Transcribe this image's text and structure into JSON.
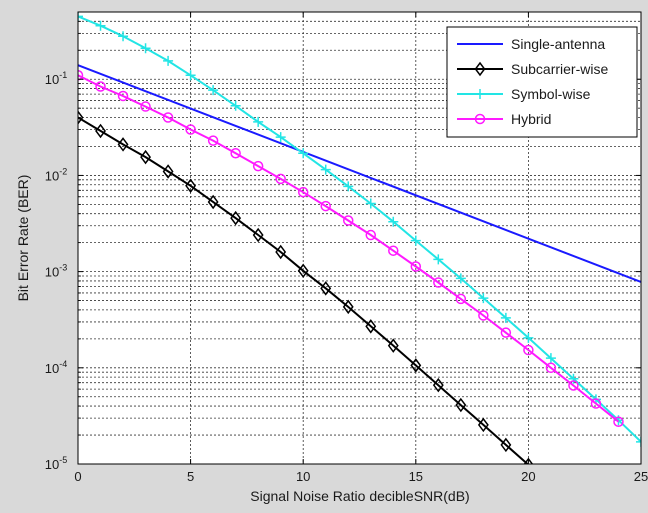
{
  "chart_data": {
    "type": "line",
    "title": "",
    "xlabel": "Signal Noise Ratio  decibleSNR(dB)",
    "ylabel": "Bit Error Rate (BER)",
    "xlim": [
      0,
      25
    ],
    "ylim": [
      1e-05,
      0.5
    ],
    "yscale": "log",
    "grid": true,
    "x_ticks": [
      0,
      5,
      10,
      15,
      20,
      25
    ],
    "x_tick_labels": [
      "0",
      "5",
      "10",
      "15",
      "20",
      "25"
    ],
    "y_ticks": [
      1e-05,
      0.0001,
      0.001,
      0.01,
      0.1
    ],
    "y_tick_labels": [
      {
        "base": "10",
        "exp": "-5"
      },
      {
        "base": "10",
        "exp": "-4"
      },
      {
        "base": "10",
        "exp": "-3"
      },
      {
        "base": "10",
        "exp": "-2"
      },
      {
        "base": "10",
        "exp": "-1"
      }
    ],
    "legend": {
      "position": "top-right"
    },
    "series": [
      {
        "name": "Single-antenna",
        "color": "#1a1aff",
        "marker": "none",
        "x": [
          0,
          25
        ],
        "y": [
          0.14,
          0.00078
        ]
      },
      {
        "name": "Subcarrier-wise",
        "color": "#000000",
        "marker": "diamond",
        "x": [
          0,
          1,
          2,
          3,
          4,
          5,
          6,
          7,
          8,
          9,
          10,
          11,
          12,
          13,
          14,
          15,
          16,
          17,
          18,
          19,
          20
        ],
        "y": [
          0.04,
          0.029,
          0.021,
          0.0155,
          0.011,
          0.0078,
          0.0053,
          0.0036,
          0.0024,
          0.0016,
          0.00102,
          0.00067,
          0.00043,
          0.00027,
          0.00017,
          0.000106,
          6.6e-05,
          4.1e-05,
          2.55e-05,
          1.58e-05,
          9.8e-06
        ]
      },
      {
        "name": "Symbol-wise",
        "color": "#22e5e5",
        "marker": "plus",
        "x": [
          0,
          1,
          2,
          3,
          4,
          5,
          6,
          7,
          8,
          9,
          10,
          11,
          12,
          13,
          14,
          15,
          16,
          17,
          18,
          19,
          20,
          21,
          22,
          23,
          24,
          25
        ],
        "y": [
          0.45,
          0.36,
          0.28,
          0.21,
          0.155,
          0.11,
          0.077,
          0.053,
          0.036,
          0.025,
          0.017,
          0.0115,
          0.0077,
          0.0051,
          0.0033,
          0.0021,
          0.00134,
          0.00085,
          0.00053,
          0.00033,
          0.000205,
          0.000126,
          7.7e-05,
          4.7e-05,
          2.85e-05,
          1.7e-05
        ]
      },
      {
        "name": "Hybrid",
        "color": "#ff1aff",
        "marker": "circle",
        "x": [
          0,
          1,
          2,
          3,
          4,
          5,
          6,
          7,
          8,
          9,
          10,
          11,
          12,
          13,
          14,
          15,
          16,
          17,
          18,
          19,
          20,
          21,
          22,
          23,
          24
        ],
        "y": [
          0.11,
          0.084,
          0.067,
          0.052,
          0.04,
          0.03,
          0.023,
          0.017,
          0.0125,
          0.0092,
          0.0067,
          0.0048,
          0.0034,
          0.0024,
          0.00165,
          0.00113,
          0.00077,
          0.00052,
          0.00035,
          0.000232,
          0.000153,
          0.0001,
          6.55e-05,
          4.25e-05,
          2.75e-05
        ]
      }
    ]
  }
}
